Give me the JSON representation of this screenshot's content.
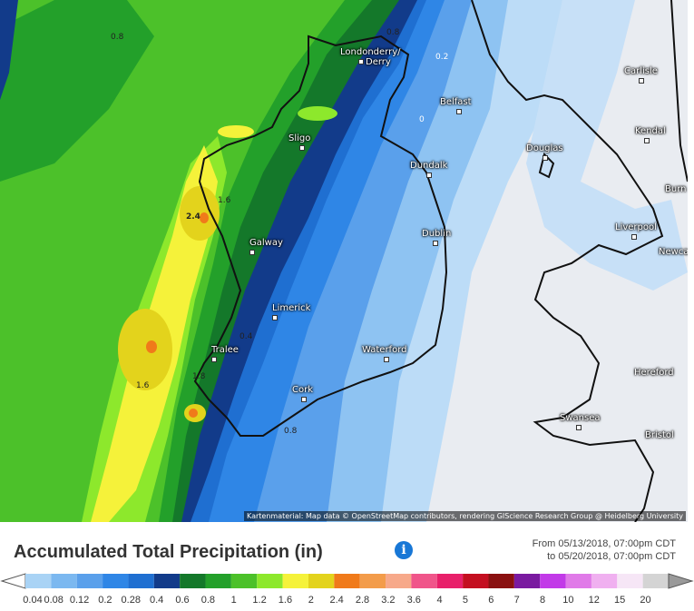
{
  "map": {
    "cities": [
      {
        "name": "Londonderry/\nDerry",
        "label1": "Londonderry/",
        "label2": "Derry"
      },
      {
        "name": "Belfast"
      },
      {
        "name": "Carlisle"
      },
      {
        "name": "Sligo"
      },
      {
        "name": "Kendal"
      },
      {
        "name": "Douglas"
      },
      {
        "name": "Dundalk"
      },
      {
        "name": "Burn"
      },
      {
        "name": "Galway"
      },
      {
        "name": "Dublin"
      },
      {
        "name": "Liverpool"
      },
      {
        "name": "Newca"
      },
      {
        "name": "Limerick"
      },
      {
        "name": "Tralee"
      },
      {
        "name": "Waterford"
      },
      {
        "name": "Hereford"
      },
      {
        "name": "Cork"
      },
      {
        "name": "Swansea"
      },
      {
        "name": "Bristol"
      }
    ],
    "contours": [
      "0.8",
      "0.8",
      "0.2",
      "0",
      "2.4",
      "1.6",
      "1.6",
      "0.4",
      "1.8",
      "0.8"
    ],
    "attribution": "Kartenmaterial: Map data © OpenStreetMap contributors, rendering GIScience Research Group @ Heidelberg University"
  },
  "header": {
    "title": "Accumulated Total Precipitation (in)",
    "date_from": "From 05/13/2018, 07:00pm CDT",
    "date_to": "to 05/20/2018, 07:00pm CDT"
  },
  "legend": {
    "labels": [
      "0.04",
      "0.08",
      "0.12",
      "0.2",
      "0.28",
      "0.4",
      "0.6",
      "0.8",
      "1",
      "1.2",
      "1.6",
      "2",
      "2.4",
      "2.8",
      "3.2",
      "3.6",
      "4",
      "5",
      "6",
      "7",
      "8",
      "10",
      "12",
      "15",
      "20"
    ],
    "colors": [
      "#a9d3f5",
      "#7bb8f0",
      "#5aa0eb",
      "#2f86e6",
      "#1f6fd1",
      "#123b8a",
      "#14782a",
      "#23a02a",
      "#4cc12a",
      "#8de82c",
      "#f5f23a",
      "#e3d31c",
      "#f07a1a",
      "#f39c4a",
      "#f7a98a",
      "#f0558a",
      "#e8206a",
      "#c40f20",
      "#8a1010",
      "#7a1aa0",
      "#c23ae8",
      "#e07ae8",
      "#f0b0f0",
      "#f6e6f6",
      "#d4d4d4"
    ]
  }
}
